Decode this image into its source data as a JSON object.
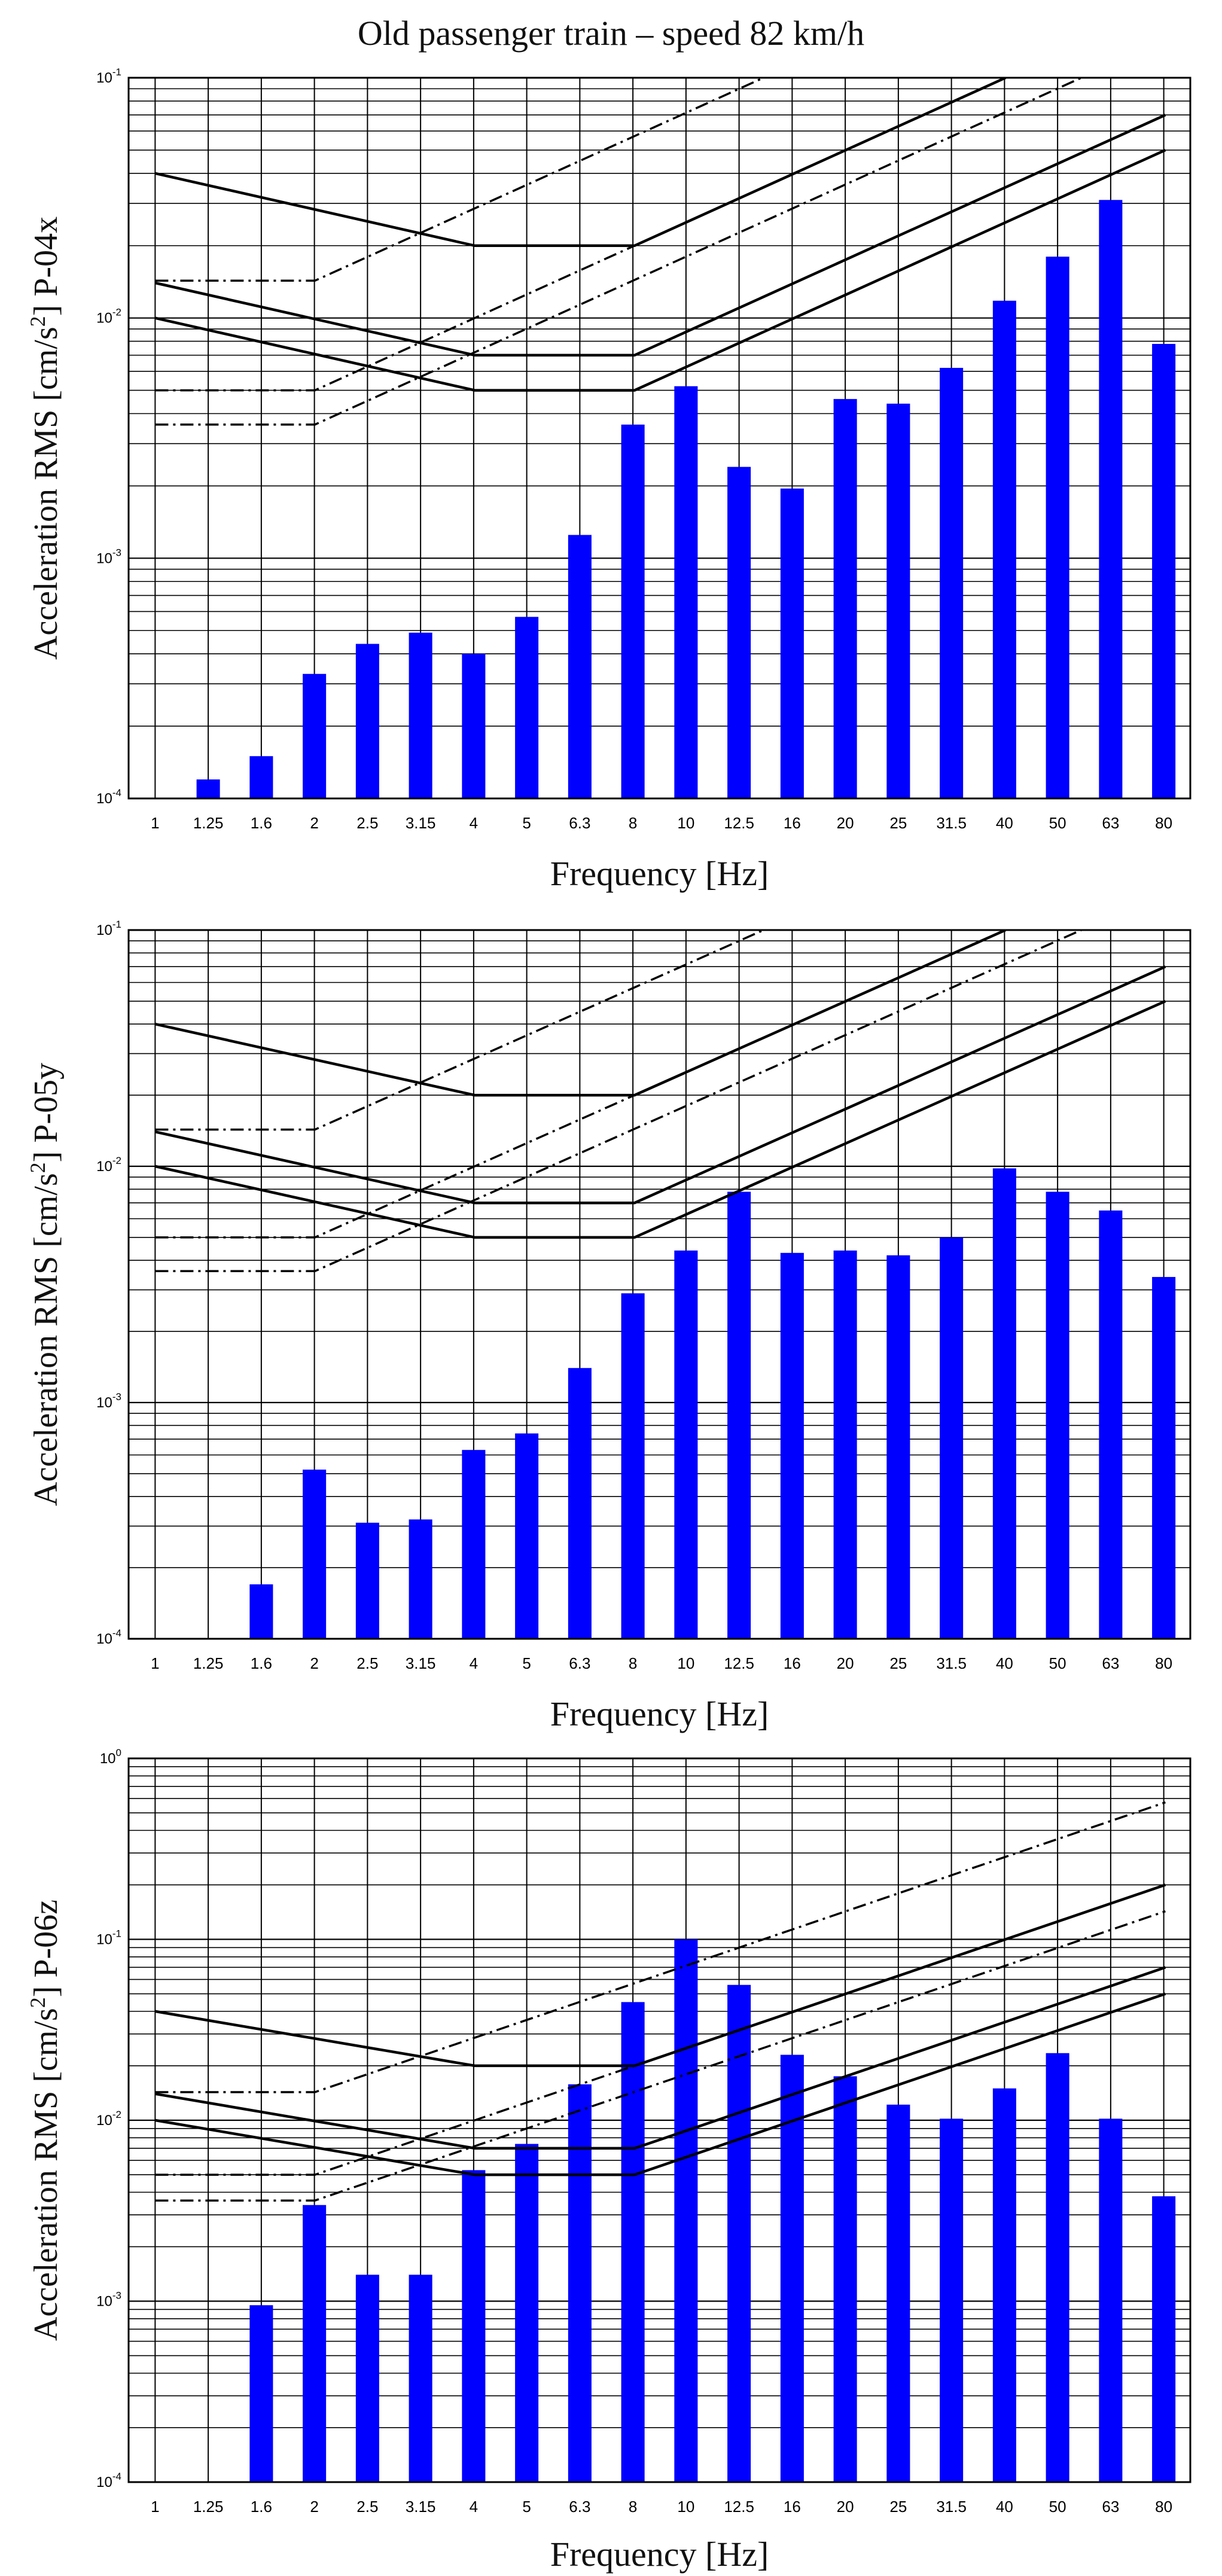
{
  "title": "Old passenger train – speed 82 km/h",
  "chart_data": [
    {
      "type": "bar",
      "id": "P-04x",
      "ylabel_prefix": "Acceleration RMS [cm/s",
      "ylabel_sup": "2",
      "ylabel_suffix": "]  P-04x",
      "xlabel": "Frequency [Hz]",
      "yscale": "log",
      "ylim": [
        0.0001,
        0.1
      ],
      "y_ticks": [
        {
          "base": "10",
          "exp": "-1"
        },
        {
          "base": "10",
          "exp": "-2"
        },
        {
          "base": "10",
          "exp": "-3"
        },
        {
          "base": "10",
          "exp": "-4"
        }
      ],
      "bar_color": "#0000ff",
      "categories": [
        "1",
        "1.25",
        "1.6",
        "2",
        "2.5",
        "3.15",
        "4",
        "5",
        "6.3",
        "8",
        "10",
        "12.5",
        "16",
        "20",
        "25",
        "31.5",
        "40",
        "50",
        "63",
        "80"
      ],
      "values": [
        null,
        0.00012,
        0.00015,
        0.00033,
        0.00044,
        0.00049,
        0.0004,
        0.00057,
        0.00125,
        0.0036,
        0.0052,
        0.0024,
        0.00195,
        0.0046,
        0.0044,
        0.0062,
        0.0118,
        0.018,
        0.031,
        0.0078
      ],
      "criteria": {
        "solid": [
          [
            [
              1,
              0.04
            ],
            [
              4,
              0.02
            ],
            [
              8,
              0.02
            ],
            [
              40,
              0.1
            ]
          ],
          [
            [
              1,
              0.014
            ],
            [
              4,
              0.007
            ],
            [
              8,
              0.007
            ],
            [
              80,
              0.07
            ]
          ],
          [
            [
              1,
              0.01
            ],
            [
              4,
              0.005
            ],
            [
              8,
              0.005
            ],
            [
              80,
              0.05
            ]
          ]
        ],
        "dashed": [
          [
            [
              1,
              0.0143
            ],
            [
              2,
              0.0143
            ],
            [
              16,
              0.1143
            ]
          ],
          [
            [
              1,
              0.005
            ],
            [
              2,
              0.005
            ],
            [
              40,
              0.1
            ]
          ],
          [
            [
              1,
              0.0036
            ],
            [
              2,
              0.0036
            ],
            [
              63,
              0.1134
            ]
          ]
        ]
      }
    },
    {
      "type": "bar",
      "id": "P-05y",
      "ylabel_prefix": "Acceleration RMS [cm/s",
      "ylabel_sup": "2",
      "ylabel_suffix": "]  P-05y",
      "xlabel": "Frequency [Hz]",
      "yscale": "log",
      "ylim": [
        0.0001,
        0.1
      ],
      "y_ticks": [
        {
          "base": "10",
          "exp": "-1"
        },
        {
          "base": "10",
          "exp": "-2"
        },
        {
          "base": "10",
          "exp": "-3"
        },
        {
          "base": "10",
          "exp": "-4"
        }
      ],
      "bar_color": "#0000ff",
      "categories": [
        "1",
        "1.25",
        "1.6",
        "2",
        "2.5",
        "3.15",
        "4",
        "5",
        "6.3",
        "8",
        "10",
        "12.5",
        "16",
        "20",
        "25",
        "31.5",
        "40",
        "50",
        "63",
        "80"
      ],
      "values": [
        null,
        null,
        0.00017,
        0.00052,
        0.00031,
        0.00032,
        0.00063,
        0.00074,
        0.0014,
        0.0029,
        0.0044,
        0.0078,
        0.0043,
        0.0044,
        0.0042,
        0.005,
        0.0098,
        0.0078,
        0.0065,
        0.0034
      ],
      "criteria": {
        "solid": [
          [
            [
              1,
              0.04
            ],
            [
              4,
              0.02
            ],
            [
              8,
              0.02
            ],
            [
              40,
              0.1
            ]
          ],
          [
            [
              1,
              0.014
            ],
            [
              4,
              0.007
            ],
            [
              8,
              0.007
            ],
            [
              80,
              0.07
            ]
          ],
          [
            [
              1,
              0.01
            ],
            [
              4,
              0.005
            ],
            [
              8,
              0.005
            ],
            [
              80,
              0.05
            ]
          ]
        ],
        "dashed": [
          [
            [
              1,
              0.0143
            ],
            [
              2,
              0.0143
            ],
            [
              16,
              0.1143
            ]
          ],
          [
            [
              1,
              0.005
            ],
            [
              2,
              0.005
            ],
            [
              40,
              0.1
            ]
          ],
          [
            [
              1,
              0.0036
            ],
            [
              2,
              0.0036
            ],
            [
              63,
              0.1134
            ]
          ]
        ]
      }
    },
    {
      "type": "bar",
      "id": "P-06z",
      "ylabel_prefix": "Acceleration RMS [cm/s",
      "ylabel_sup": "2",
      "ylabel_suffix": "]  P-06z",
      "xlabel": "Frequency [Hz]",
      "yscale": "log",
      "ylim": [
        0.0001,
        1
      ],
      "y_ticks": [
        {
          "base": "10",
          "exp": "0"
        },
        {
          "base": "10",
          "exp": "-1"
        },
        {
          "base": "10",
          "exp": "-2"
        },
        {
          "base": "10",
          "exp": "-3"
        },
        {
          "base": "10",
          "exp": "-4"
        }
      ],
      "bar_color": "#0000ff",
      "categories": [
        "1",
        "1.25",
        "1.6",
        "2",
        "2.5",
        "3.15",
        "4",
        "5",
        "6.3",
        "8",
        "10",
        "12.5",
        "16",
        "20",
        "25",
        "31.5",
        "40",
        "50",
        "63",
        "80"
      ],
      "values": [
        null,
        null,
        0.00095,
        0.0034,
        0.0014,
        0.0014,
        0.0053,
        0.0074,
        0.0158,
        0.045,
        0.1,
        0.056,
        0.023,
        0.0175,
        0.0122,
        0.0102,
        0.015,
        0.0235,
        0.0102,
        0.0038
      ],
      "criteria": {
        "solid": [
          [
            [
              1,
              0.04
            ],
            [
              4,
              0.02
            ],
            [
              8,
              0.02
            ],
            [
              80,
              0.2
            ]
          ],
          [
            [
              1,
              0.014
            ],
            [
              4,
              0.007
            ],
            [
              8,
              0.007
            ],
            [
              80,
              0.07
            ]
          ],
          [
            [
              1,
              0.01
            ],
            [
              4,
              0.005
            ],
            [
              8,
              0.005
            ],
            [
              80,
              0.05
            ]
          ]
        ],
        "dashed": [
          [
            [
              1,
              0.0143
            ],
            [
              2,
              0.0143
            ],
            [
              80,
              0.5714
            ]
          ],
          [
            [
              1,
              0.005
            ],
            [
              2,
              0.005
            ],
            [
              80,
              0.2
            ]
          ],
          [
            [
              1,
              0.0036
            ],
            [
              2,
              0.0036
            ],
            [
              80,
              0.1429
            ]
          ]
        ]
      }
    }
  ]
}
